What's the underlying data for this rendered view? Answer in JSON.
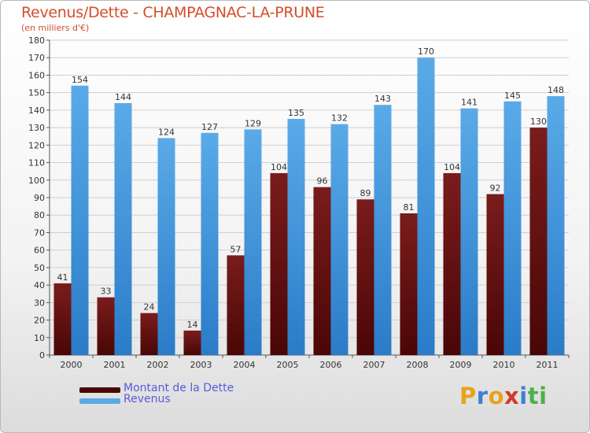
{
  "colors": {
    "debt": "#7a1c1c",
    "debt_dark": "#4a0606",
    "revenue": "#5aaae8",
    "revenue_dark": "#2a7cc8",
    "title": "#d54d2c",
    "legend_text": "#5a5adc"
  },
  "logo": {
    "text": "Proxiti",
    "letters": [
      "P",
      "r",
      "o",
      "x",
      "i",
      "t",
      "i"
    ],
    "letter_colors": [
      "#e9a21d",
      "#3f7fd0",
      "#e9a21d",
      "#d23a2a",
      "#3f7fd0",
      "#4db04a",
      "#4db04a"
    ]
  },
  "chart_data": {
    "type": "bar",
    "title": "Revenus/Dette - CHAMPAGNAC-LA-PRUNE",
    "subtitle": "(en milliers d'€)",
    "xlabel": "",
    "ylabel": "",
    "ylim": [
      0,
      180
    ],
    "ytick_step": 10,
    "yticks": [
      "0",
      "10",
      "20",
      "30",
      "40",
      "50",
      "60",
      "70",
      "80",
      "90",
      "100",
      "110",
      "120",
      "130",
      "140",
      "150",
      "160",
      "170",
      "180"
    ],
    "grid": true,
    "legend_position": "bottom-left",
    "categories": [
      "2000",
      "2001",
      "2002",
      "2003",
      "2004",
      "2005",
      "2006",
      "2007",
      "2008",
      "2009",
      "2010",
      "2011"
    ],
    "series": [
      {
        "name": "Montant de la Dette",
        "values": [
          41,
          33,
          24,
          14,
          57,
          104,
          96,
          89,
          81,
          104,
          92,
          130
        ]
      },
      {
        "name": "Revenus",
        "values": [
          154,
          144,
          124,
          127,
          129,
          135,
          132,
          143,
          170,
          141,
          145,
          148
        ]
      }
    ]
  }
}
